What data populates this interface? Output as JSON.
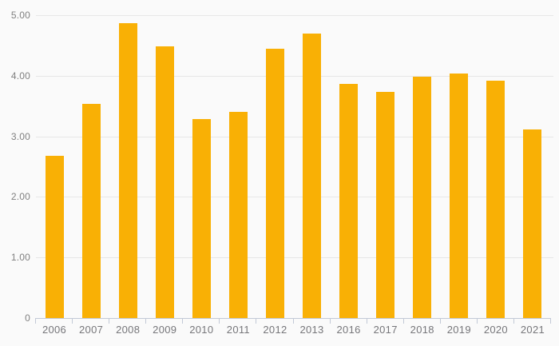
{
  "chart_data": {
    "type": "bar",
    "title": "",
    "xlabel": "",
    "ylabel": "",
    "categories": [
      "2006",
      "2007",
      "2008",
      "2009",
      "2010",
      "2011",
      "2012",
      "2013",
      "2016",
      "2017",
      "2018",
      "2019",
      "2020",
      "2021"
    ],
    "values": [
      2.68,
      3.53,
      4.87,
      4.49,
      3.29,
      3.4,
      4.45,
      4.69,
      3.87,
      3.74,
      3.99,
      4.04,
      3.92,
      3.11
    ],
    "ylim": [
      0,
      5
    ],
    "y_tick_labels": [
      "0",
      "1.00",
      "2.00",
      "3.00",
      "4.00",
      "5.00"
    ],
    "y_tick_values": [
      0,
      1,
      2,
      3,
      4,
      5
    ],
    "grid": true,
    "legend": "none",
    "colors": {
      "bar": "#F9B005",
      "background": "#FAFAFA",
      "gridline": "#E7E7E7",
      "axis": "#C2C9D6",
      "y_label": "#808080",
      "x_label": "#76767A"
    }
  }
}
